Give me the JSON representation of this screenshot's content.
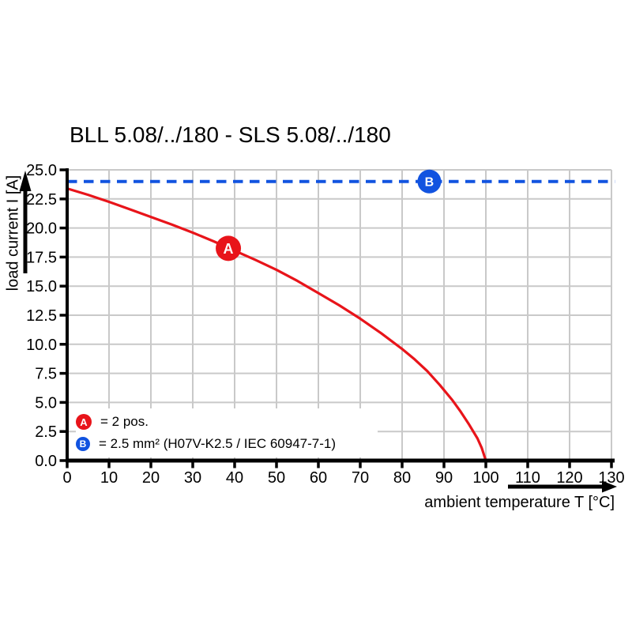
{
  "title": "BLL 5.08/../180 - SLS 5.08/../180",
  "colors": {
    "curve_red": "#e8141a",
    "limit_blue": "#1153e0",
    "grid": "#c9c9c9",
    "axis": "#000000",
    "background": "#ffffff"
  },
  "chart_data": {
    "type": "line",
    "title": "BLL 5.08/../180 - SLS 5.08/../180",
    "xlabel": "ambient temperature T [°C]",
    "ylabel": "load current I [A]",
    "xlim": [
      0,
      130
    ],
    "ylim": [
      0,
      25
    ],
    "grid": true,
    "x_ticks": [
      0,
      10,
      20,
      30,
      40,
      50,
      60,
      70,
      80,
      90,
      100,
      110,
      120,
      130
    ],
    "x_tick_labels": [
      "0",
      "10",
      "20",
      "30",
      "40",
      "50",
      "60",
      "70",
      "80",
      "90",
      "100",
      "110",
      "120",
      "130"
    ],
    "y_ticks": [
      0,
      2.5,
      5,
      7.5,
      10,
      12.5,
      15,
      17.5,
      20,
      22.5,
      25
    ],
    "y_tick_labels": [
      "0.0",
      "2.5",
      "5.0",
      "7.5",
      "10.0",
      "12.5",
      "15.0",
      "17.5",
      "20.0",
      "22.5",
      "25.0"
    ],
    "series": [
      {
        "name": "A",
        "label": "2 pos.",
        "color": "#e8141a",
        "style": "solid",
        "x": [
          0,
          5,
          10,
          15,
          20,
          25,
          30,
          35,
          40,
          45,
          50,
          55,
          60,
          65,
          70,
          75,
          80,
          83,
          86,
          89,
          92,
          94,
          96,
          98,
          99,
          100
        ],
        "y": [
          23.4,
          22.85,
          22.25,
          21.6,
          20.95,
          20.3,
          19.6,
          18.85,
          18.05,
          17.25,
          16.4,
          15.45,
          14.4,
          13.35,
          12.2,
          10.95,
          9.6,
          8.7,
          7.7,
          6.5,
          5.2,
          4.2,
          3.1,
          1.9,
          1.1,
          0.0
        ]
      },
      {
        "name": "B",
        "label": "2.5 mm² (H07V-K2.5 / IEC 60947-7-1)",
        "color": "#1153e0",
        "style": "dashed",
        "x": [
          0,
          130.8
        ],
        "y": [
          24.0,
          24.0
        ]
      }
    ],
    "markers": [
      {
        "label": "A",
        "x": 38.5,
        "y": 18.25,
        "color": "#e8141a",
        "r": 16,
        "font": 18
      },
      {
        "label": "B",
        "x": 86.5,
        "y": 24.0,
        "color": "#1153e0",
        "r": 15,
        "font": 16
      }
    ],
    "legend_position": "lower-left"
  },
  "legend": {
    "items": [
      {
        "symbol": "A",
        "color": "#e8141a",
        "text": "= 2 pos."
      },
      {
        "symbol": "B",
        "color": "#1153e0",
        "text": "= 2.5 mm² (H07V-K2.5 / IEC 60947-7-1)"
      }
    ]
  }
}
